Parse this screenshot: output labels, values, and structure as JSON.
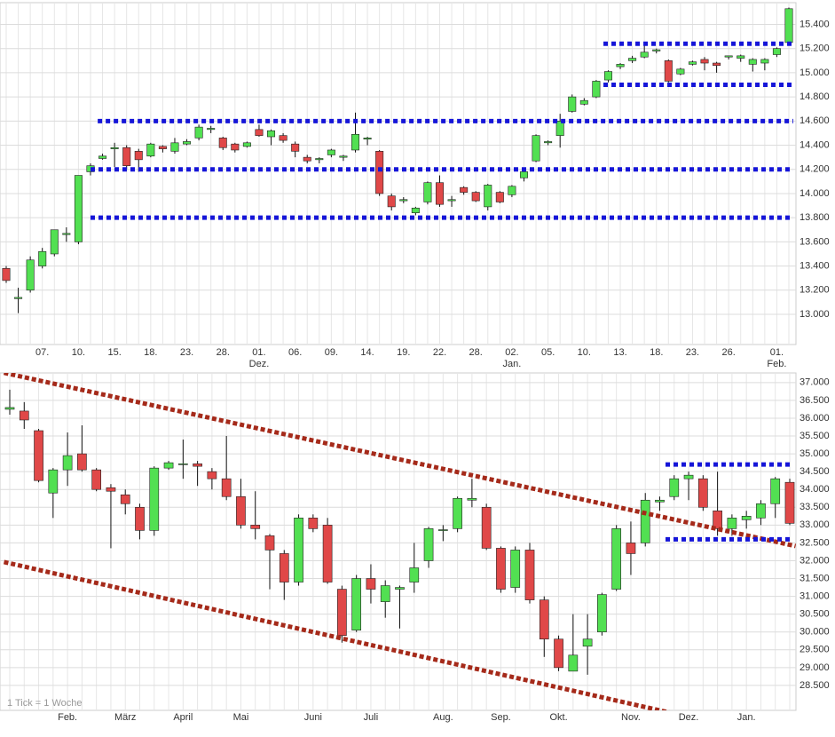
{
  "chart_data": [
    {
      "type": "candlestick",
      "categories": [
        null,
        null,
        null,
        "07.",
        null,
        null,
        "10.",
        null,
        null,
        "15.",
        null,
        null,
        "18.",
        null,
        null,
        "23.",
        null,
        null,
        "28.",
        null,
        null,
        "01.",
        null,
        null,
        "06.",
        null,
        null,
        "09.",
        null,
        null,
        "14.",
        null,
        null,
        "19.",
        null,
        null,
        "22.",
        null,
        null,
        "28.",
        null,
        null,
        "02.",
        null,
        null,
        "05.",
        null,
        null,
        "10.",
        null,
        null,
        "13.",
        null,
        null,
        "18.",
        null,
        null,
        "23.",
        null,
        null,
        "26.",
        null,
        null,
        null,
        "01.",
        null
      ],
      "month_labels": [
        null,
        null,
        null,
        null,
        null,
        null,
        null,
        null,
        null,
        null,
        null,
        null,
        null,
        null,
        null,
        null,
        null,
        null,
        null,
        null,
        null,
        "Dez.",
        null,
        null,
        null,
        null,
        null,
        null,
        null,
        null,
        null,
        null,
        null,
        null,
        null,
        null,
        null,
        null,
        null,
        null,
        null,
        null,
        "Jan.",
        null,
        null,
        null,
        null,
        null,
        null,
        null,
        null,
        null,
        null,
        null,
        null,
        null,
        null,
        null,
        null,
        null,
        null,
        null,
        null,
        null,
        "Feb.",
        null
      ],
      "open": [
        13380,
        13130,
        13200,
        13400,
        13500,
        13660,
        13600,
        14180,
        14290,
        14370,
        14380,
        14350,
        14310,
        14390,
        14350,
        14410,
        14460,
        14530,
        14460,
        14410,
        14390,
        14530,
        14470,
        14480,
        14410,
        14300,
        14280,
        14320,
        14300,
        14360,
        14450,
        14350,
        13980,
        13940,
        13840,
        13930,
        14090,
        13940,
        14050,
        14010,
        13890,
        14010,
        13990,
        14130,
        14270,
        14420,
        14480,
        14680,
        14740,
        14800,
        14940,
        15050,
        15100,
        15130,
        15180,
        15100,
        14990,
        15070,
        15110,
        15080,
        15130,
        15120,
        15070,
        15080,
        15150,
        15250
      ],
      "high": [
        13400,
        13220,
        13480,
        13550,
        13700,
        13720,
        14150,
        14250,
        14330,
        14420,
        14400,
        14370,
        14420,
        14400,
        14460,
        14450,
        14570,
        14560,
        14470,
        14420,
        14430,
        14570,
        14530,
        14500,
        14430,
        14320,
        14300,
        14370,
        14320,
        14670,
        14470,
        14360,
        14000,
        13970,
        13890,
        14100,
        14150,
        13980,
        14060,
        14020,
        14080,
        14020,
        14070,
        14190,
        14490,
        14440,
        14660,
        14820,
        14790,
        14940,
        15020,
        15080,
        15140,
        15240,
        15200,
        15110,
        15040,
        15100,
        15130,
        15090,
        15140,
        15150,
        15120,
        15120,
        15210,
        15540
      ],
      "low": [
        13260,
        13010,
        13180,
        13380,
        13480,
        13600,
        13580,
        14150,
        14280,
        14220,
        14200,
        14180,
        14300,
        14340,
        14330,
        14400,
        14440,
        14500,
        14360,
        14340,
        14380,
        14470,
        14400,
        14420,
        14300,
        14250,
        14250,
        14300,
        14270,
        14340,
        14400,
        13980,
        13860,
        13920,
        13820,
        13910,
        13890,
        13890,
        13990,
        13930,
        13860,
        13920,
        13970,
        14100,
        14260,
        14400,
        14380,
        14670,
        14730,
        14790,
        14920,
        15030,
        15080,
        15120,
        15160,
        14920,
        14980,
        15060,
        15020,
        15000,
        15110,
        15090,
        15010,
        15020,
        15130,
        15240
      ],
      "close": [
        13280,
        13140,
        13450,
        13520,
        13700,
        13670,
        14150,
        14230,
        14310,
        14380,
        14230,
        14280,
        14410,
        14370,
        14420,
        14430,
        14550,
        14540,
        14380,
        14360,
        14420,
        14480,
        14520,
        14440,
        14350,
        14270,
        14290,
        14360,
        14310,
        14490,
        14460,
        14000,
        13890,
        13950,
        13880,
        14090,
        13910,
        13950,
        14010,
        13940,
        14070,
        13930,
        14060,
        14180,
        14480,
        14430,
        14600,
        14800,
        14770,
        14930,
        15010,
        15070,
        15120,
        15170,
        15190,
        14930,
        15030,
        15090,
        15080,
        15060,
        15140,
        15140,
        15110,
        15110,
        15200,
        15530
      ],
      "up_color": "#52e052",
      "down_color": "#e04848",
      "ylim": [
        12750,
        15580
      ],
      "yticks": [
        {
          "value": 13000,
          "label": "13.000"
        },
        {
          "value": 13200,
          "label": "13.200"
        },
        {
          "value": 13400,
          "label": "13.400"
        },
        {
          "value": 13600,
          "label": "13.600"
        },
        {
          "value": 13800,
          "label": "13.800"
        },
        {
          "value": 14000,
          "label": "14.000"
        },
        {
          "value": 14200,
          "label": "14.200"
        },
        {
          "value": 14400,
          "label": "14.400"
        },
        {
          "value": 14600,
          "label": "14.600"
        },
        {
          "value": 14800,
          "label": "14.800"
        },
        {
          "value": 15000,
          "label": "15.000"
        },
        {
          "value": 15200,
          "label": "15.200"
        },
        {
          "value": 15400,
          "label": "15.400"
        }
      ],
      "grid": true,
      "level_color": "#1515d8",
      "levels": [
        {
          "value": 13800,
          "start": 7
        },
        {
          "value": 14200,
          "start": 7
        },
        {
          "value": 14600,
          "start": 7.6
        },
        {
          "value": 14900,
          "start": 49.6
        },
        {
          "value": 15240,
          "start": 49.6
        }
      ]
    },
    {
      "type": "candlestick",
      "categories": [
        null,
        null,
        null,
        null,
        "Feb.",
        null,
        null,
        null,
        "März",
        null,
        null,
        null,
        "April",
        null,
        null,
        null,
        "Mai",
        null,
        null,
        null,
        null,
        "Juni",
        null,
        null,
        null,
        "Juli",
        null,
        null,
        null,
        null,
        "Aug.",
        null,
        null,
        null,
        "Sep.",
        null,
        null,
        null,
        "Okt.",
        null,
        null,
        null,
        null,
        "Nov.",
        null,
        null,
        null,
        "Dez.",
        null,
        null,
        null,
        "Jan.",
        null,
        null,
        null
      ],
      "open": [
        36250,
        36200,
        35650,
        33900,
        34550,
        35000,
        34550,
        34050,
        33850,
        33500,
        32850,
        34600,
        34700,
        34720,
        34500,
        34300,
        33800,
        33000,
        32700,
        32200,
        31400,
        33200,
        33000,
        31200,
        30050,
        31500,
        30850,
        31200,
        31400,
        32000,
        32850,
        32900,
        33700,
        33500,
        32350,
        31250,
        32300,
        30900,
        29800,
        28900,
        29600,
        30000,
        31200,
        32500,
        32500,
        33650,
        33800,
        34300,
        34300,
        33400,
        32900,
        33150,
        33200,
        33600,
        34200
      ],
      "high": [
        36800,
        36450,
        35700,
        34600,
        35600,
        35800,
        34600,
        34150,
        34000,
        33600,
        34650,
        34800,
        35400,
        34800,
        34600,
        35500,
        34300,
        33950,
        32750,
        32300,
        33300,
        33300,
        33200,
        31300,
        31600,
        31900,
        31450,
        31300,
        32500,
        32950,
        33000,
        33800,
        34300,
        33600,
        32400,
        32400,
        32500,
        31000,
        29900,
        30500,
        30500,
        31100,
        33000,
        33100,
        33900,
        33800,
        34400,
        34500,
        34400,
        34500,
        33300,
        33400,
        33700,
        34350,
        34300
      ],
      "low": [
        36100,
        35700,
        34200,
        33200,
        34100,
        34500,
        33950,
        32350,
        33300,
        32600,
        32700,
        34550,
        34300,
        34100,
        34000,
        33700,
        32900,
        32600,
        31200,
        30900,
        31300,
        32800,
        31350,
        29700,
        30000,
        30800,
        30400,
        30100,
        31100,
        31800,
        32550,
        32800,
        33500,
        32300,
        31100,
        31100,
        30800,
        29300,
        28900,
        28900,
        28800,
        29900,
        31150,
        31600,
        32400,
        33400,
        33700,
        33700,
        33400,
        32700,
        32700,
        32900,
        33000,
        33200,
        33000
      ],
      "close": [
        36300,
        35950,
        34250,
        34550,
        34950,
        34550,
        34000,
        33950,
        33600,
        32850,
        34600,
        34750,
        34720,
        34650,
        34300,
        33800,
        33000,
        32900,
        32300,
        31400,
        33200,
        32900,
        31400,
        29900,
        31500,
        31200,
        31300,
        31250,
        31800,
        32900,
        32870,
        33750,
        33750,
        32350,
        31200,
        32300,
        30900,
        29800,
        29000,
        29350,
        29800,
        31050,
        32900,
        32200,
        33700,
        33700,
        34300,
        34400,
        33500,
        32900,
        33200,
        33250,
        33600,
        34300,
        33050
      ],
      "up_color": "#52e052",
      "down_color": "#e04848",
      "ylim": [
        27800,
        37270
      ],
      "yticks": [
        {
          "value": 28500,
          "label": "28.500"
        },
        {
          "value": 29000,
          "label": "29.000"
        },
        {
          "value": 29500,
          "label": "29.500"
        },
        {
          "value": 30000,
          "label": "30.000"
        },
        {
          "value": 30500,
          "label": "30.500"
        },
        {
          "value": 31000,
          "label": "31.000"
        },
        {
          "value": 31500,
          "label": "31.500"
        },
        {
          "value": 32000,
          "label": "32.000"
        },
        {
          "value": 32500,
          "label": "32.500"
        },
        {
          "value": 33000,
          "label": "33.000"
        },
        {
          "value": 33500,
          "label": "33.500"
        },
        {
          "value": 34000,
          "label": "34.000"
        },
        {
          "value": 34500,
          "label": "34.500"
        },
        {
          "value": 35000,
          "label": "35.000"
        },
        {
          "value": 35500,
          "label": "35.500"
        },
        {
          "value": 36000,
          "label": "36.000"
        },
        {
          "value": 36500,
          "label": "36.500"
        },
        {
          "value": 37000,
          "label": "37.000"
        }
      ],
      "grid": true,
      "level_color": "#1515d8",
      "levels": [
        {
          "value": 34700,
          "start": 45.4
        },
        {
          "value": 32600,
          "start": 45.4
        }
      ],
      "trend_color": "#a52a1a",
      "trendlines": [
        {
          "from": [
            -0.4,
            37274
          ],
          "to": [
            54.4,
            32411
          ]
        },
        {
          "from": [
            -0.4,
            31963
          ],
          "to": [
            49.1,
            27424
          ]
        }
      ],
      "note": "1 Tick = 1 Woche"
    }
  ]
}
